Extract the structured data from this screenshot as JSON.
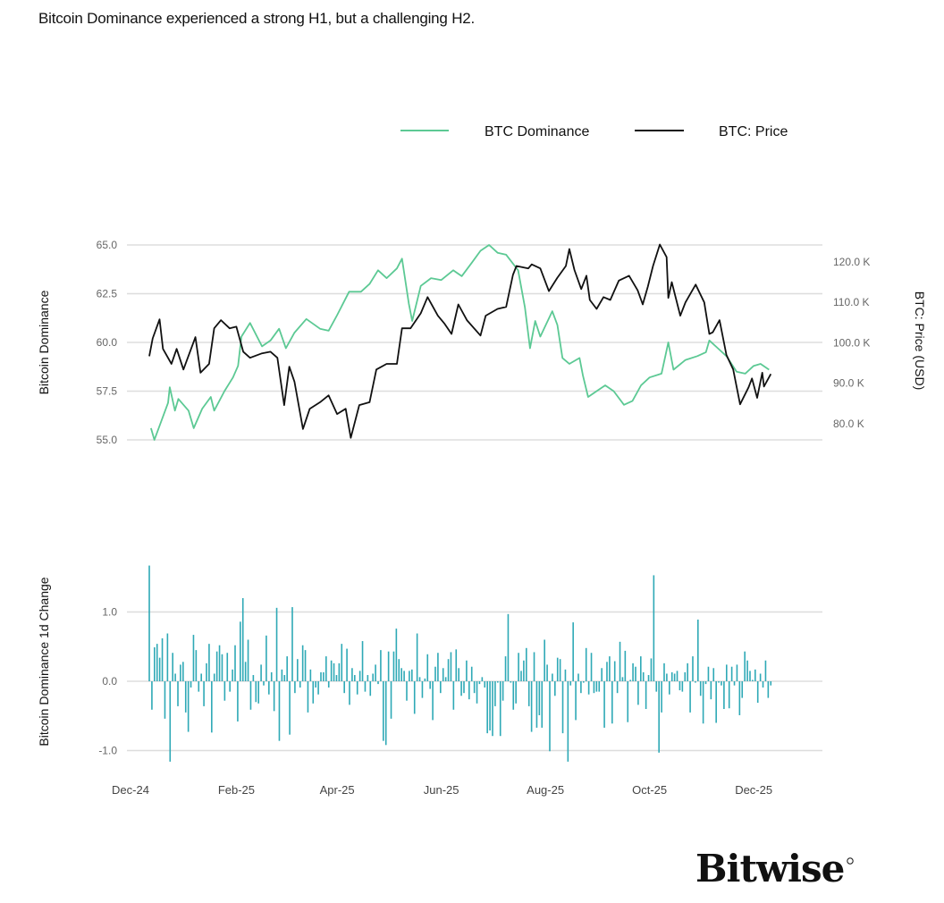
{
  "title": "Bitcoin Dominance experienced a strong H1, but a challenging H2.",
  "logo_text": "Bitwise",
  "colors": {
    "dominance": "#5cc994",
    "price": "#111111",
    "bars": "#2ea9b6",
    "grid": "#dddddd"
  },
  "chart_data": [
    {
      "type": "line",
      "x_unit": "days since 2024-12-01",
      "xlim": [
        0,
        400
      ],
      "x_ticks": [
        {
          "label": "Dec-24",
          "day": 0
        },
        {
          "label": "Feb-25",
          "day": 62
        },
        {
          "label": "Apr-25",
          "day": 121
        },
        {
          "label": "Jun-25",
          "day": 182
        },
        {
          "label": "Aug-25",
          "day": 243
        },
        {
          "label": "Oct-25",
          "day": 304
        },
        {
          "label": "Dec-25",
          "day": 365
        }
      ],
      "legend": {
        "placement": "top-right",
        "entries": [
          "BTC Dominance",
          "BTC: Price"
        ]
      },
      "ylabel_left": "Bitcoin Dominance",
      "ylim_left": [
        55,
        65
      ],
      "yticks_left": [
        {
          "label": "65.0",
          "value": 65
        },
        {
          "label": "62.5",
          "value": 62.5
        },
        {
          "label": "60.0",
          "value": 60
        },
        {
          "label": "57.5",
          "value": 57.5
        },
        {
          "label": "55.0",
          "value": 55
        }
      ],
      "ylabel_right": "BTC: Price (USD)",
      "ylim_right": [
        76,
        124.2
      ],
      "yticks_right": [
        {
          "label": "120.0 K",
          "value": 120
        },
        {
          "label": "110.0 K",
          "value": 110
        },
        {
          "label": "100.0 K",
          "value": 100
        },
        {
          "label": "90.0 K",
          "value": 90
        },
        {
          "label": "80.0 K",
          "value": 80
        }
      ],
      "grid": true,
      "series": [
        {
          "name": "BTC Dominance",
          "axis": "left",
          "points": [
            [
              12,
              55.6
            ],
            [
              14,
              55.0
            ],
            [
              22,
              56.9
            ],
            [
              23,
              57.7
            ],
            [
              26,
              56.5
            ],
            [
              28,
              57.1
            ],
            [
              34,
              56.5
            ],
            [
              37,
              55.6
            ],
            [
              42,
              56.6
            ],
            [
              47,
              57.2
            ],
            [
              49,
              56.5
            ],
            [
              55,
              57.5
            ],
            [
              60,
              58.2
            ],
            [
              63,
              58.8
            ],
            [
              65,
              60.3
            ],
            [
              70,
              61.0
            ],
            [
              77,
              59.8
            ],
            [
              82,
              60.1
            ],
            [
              87,
              60.7
            ],
            [
              91,
              59.7
            ],
            [
              96,
              60.5
            ],
            [
              103,
              61.2
            ],
            [
              111,
              60.7
            ],
            [
              116,
              60.6
            ],
            [
              121,
              61.4
            ],
            [
              128,
              62.6
            ],
            [
              135,
              62.6
            ],
            [
              140,
              63.0
            ],
            [
              145,
              63.7
            ],
            [
              150,
              63.3
            ],
            [
              156,
              63.8
            ],
            [
              159,
              64.3
            ],
            [
              163,
              62.0
            ],
            [
              165,
              61.1
            ],
            [
              170,
              62.9
            ],
            [
              176,
              63.3
            ],
            [
              182,
              63.2
            ],
            [
              189,
              63.7
            ],
            [
              194,
              63.4
            ],
            [
              200,
              64.1
            ],
            [
              205,
              64.7
            ],
            [
              210,
              65.0
            ],
            [
              215,
              64.6
            ],
            [
              220,
              64.5
            ],
            [
              227,
              63.7
            ],
            [
              231,
              61.8
            ],
            [
              234,
              59.7
            ],
            [
              237,
              61.1
            ],
            [
              240,
              60.3
            ],
            [
              247,
              61.6
            ],
            [
              250,
              60.9
            ],
            [
              253,
              59.2
            ],
            [
              257,
              58.9
            ],
            [
              263,
              59.2
            ],
            [
              265,
              58.3
            ],
            [
              268,
              57.2
            ],
            [
              273,
              57.5
            ],
            [
              278,
              57.8
            ],
            [
              283,
              57.5
            ],
            [
              289,
              56.8
            ],
            [
              294,
              57.0
            ],
            [
              299,
              57.8
            ],
            [
              304,
              58.2
            ],
            [
              311,
              58.4
            ],
            [
              315,
              60.0
            ],
            [
              318,
              58.6
            ],
            [
              325,
              59.1
            ],
            [
              332,
              59.3
            ],
            [
              337,
              59.5
            ],
            [
              339,
              60.1
            ],
            [
              344,
              59.7
            ],
            [
              349,
              59.3
            ],
            [
              355,
              58.5
            ],
            [
              360,
              58.4
            ],
            [
              365,
              58.8
            ],
            [
              369,
              58.9
            ],
            [
              374,
              58.6
            ]
          ]
        },
        {
          "name": "BTC: Price",
          "axis": "right",
          "unit": "K USD",
          "points": [
            [
              11,
              96.7
            ],
            [
              13,
              101.1
            ],
            [
              17,
              105.8
            ],
            [
              19,
              98.5
            ],
            [
              24,
              94.8
            ],
            [
              27,
              98.5
            ],
            [
              31,
              93.4
            ],
            [
              38,
              101.4
            ],
            [
              41,
              92.6
            ],
            [
              46,
              94.8
            ],
            [
              49,
              103.6
            ],
            [
              53,
              105.6
            ],
            [
              58,
              103.6
            ],
            [
              62,
              104.0
            ],
            [
              66,
              97.8
            ],
            [
              70,
              96.3
            ],
            [
              77,
              97.4
            ],
            [
              82,
              97.8
            ],
            [
              86,
              96.3
            ],
            [
              90,
              84.6
            ],
            [
              93,
              94.1
            ],
            [
              96,
              90.4
            ],
            [
              101,
              78.7
            ],
            [
              105,
              83.7
            ],
            [
              111,
              85.3
            ],
            [
              116,
              87.0
            ],
            [
              121,
              82.4
            ],
            [
              126,
              83.7
            ],
            [
              129,
              76.5
            ],
            [
              134,
              84.6
            ],
            [
              140,
              85.3
            ],
            [
              144,
              93.4
            ],
            [
              150,
              94.8
            ],
            [
              156,
              94.8
            ],
            [
              159,
              103.6
            ],
            [
              164,
              103.6
            ],
            [
              170,
              107.3
            ],
            [
              174,
              111.3
            ],
            [
              180,
              106.7
            ],
            [
              184,
              104.7
            ],
            [
              188,
              102.2
            ],
            [
              192,
              109.5
            ],
            [
              197,
              105.6
            ],
            [
              205,
              101.8
            ],
            [
              208,
              106.7
            ],
            [
              215,
              108.4
            ],
            [
              220,
              108.9
            ],
            [
              224,
              116.8
            ],
            [
              226,
              119.0
            ],
            [
              233,
              118.4
            ],
            [
              235,
              119.4
            ],
            [
              240,
              118.4
            ],
            [
              245,
              112.8
            ],
            [
              250,
              116.1
            ],
            [
              255,
              119.0
            ],
            [
              257,
              123.2
            ],
            [
              260,
              118.0
            ],
            [
              264,
              113.3
            ],
            [
              267,
              116.6
            ],
            [
              269,
              110.6
            ],
            [
              273,
              108.4
            ],
            [
              277,
              111.3
            ],
            [
              281,
              110.6
            ],
            [
              286,
              115.4
            ],
            [
              292,
              116.6
            ],
            [
              297,
              113.0
            ],
            [
              300,
              109.5
            ],
            [
              303,
              113.9
            ],
            [
              306,
              119.0
            ],
            [
              310,
              124.3
            ],
            [
              314,
              121.2
            ],
            [
              315,
              111.1
            ],
            [
              317,
              115.0
            ],
            [
              322,
              106.7
            ],
            [
              325,
              110.0
            ],
            [
              331,
              114.4
            ],
            [
              336,
              110.0
            ],
            [
              339,
              102.2
            ],
            [
              341,
              102.6
            ],
            [
              345,
              105.6
            ],
            [
              349,
              97.0
            ],
            [
              353,
              93.4
            ],
            [
              357,
              84.8
            ],
            [
              362,
              89.0
            ],
            [
              364,
              91.2
            ],
            [
              367,
              86.4
            ],
            [
              370,
              92.6
            ],
            [
              371,
              89.2
            ],
            [
              375,
              92.3
            ]
          ]
        }
      ]
    },
    {
      "type": "bar",
      "ylabel": "Bitcoin Dominance 1d Change",
      "ylim": [
        -1.2,
        1.7
      ],
      "yticks": [
        {
          "label": "1.0",
          "value": 1
        },
        {
          "label": "0.0",
          "value": 0
        },
        {
          "label": "-1.0",
          "value": -1
        }
      ],
      "x_start_day": 11,
      "x_end_day": 375,
      "grid": true,
      "values": [
        1.67,
        -0.41,
        0.49,
        0.54,
        0.34,
        0.62,
        -0.54,
        0.69,
        -1.16,
        0.41,
        0.11,
        -0.36,
        0.24,
        0.28,
        -0.45,
        -0.73,
        -0.09,
        0.67,
        0.45,
        -0.15,
        0.11,
        -0.36,
        0.26,
        0.54,
        -0.74,
        0.11,
        0.43,
        0.52,
        0.39,
        -0.28,
        0.41,
        -0.15,
        0.17,
        0.52,
        -0.58,
        0.86,
        1.2,
        0.28,
        0.6,
        -0.41,
        0.09,
        -0.3,
        -0.32,
        0.24,
        -0.06,
        0.66,
        -0.19,
        0.13,
        -0.43,
        1.06,
        -0.86,
        0.17,
        0.09,
        0.36,
        -0.77,
        1.07,
        -0.17,
        0.32,
        -0.09,
        0.52,
        0.45,
        -0.45,
        0.17,
        -0.32,
        -0.09,
        -0.19,
        0.13,
        0.13,
        0.36,
        -0.09,
        0.3,
        0.26,
        0.09,
        0.26,
        0.54,
        -0.17,
        0.47,
        -0.34,
        0.19,
        0.09,
        -0.19,
        0.15,
        0.58,
        -0.15,
        0.09,
        -0.21,
        0.11,
        0.24,
        -0.04,
        0.45,
        -0.86,
        -0.92,
        0.43,
        -0.54,
        0.43,
        0.76,
        0.32,
        0.19,
        0.15,
        -0.28,
        0.15,
        0.17,
        -0.47,
        0.69,
        0.06,
        -0.24,
        0.04,
        0.39,
        -0.11,
        -0.56,
        0.21,
        0.41,
        -0.17,
        0.19,
        0.06,
        0.32,
        0.42,
        -0.41,
        0.46,
        0.19,
        -0.21,
        -0.17,
        0.3,
        -0.26,
        0.21,
        -0.17,
        -0.32,
        -0.04,
        0.06,
        -0.09,
        -0.75,
        -0.71,
        -0.79,
        -0.36,
        -0.02,
        -0.79,
        -0.28,
        0.36,
        0.97,
        -0.02,
        -0.41,
        -0.32,
        0.41,
        0.15,
        0.3,
        0.48,
        -0.36,
        -0.73,
        0.42,
        -0.67,
        -0.49,
        -0.67,
        0.6,
        0.24,
        -1.01,
        0.11,
        -0.21,
        0.34,
        0.32,
        -0.75,
        0.17,
        -1.16,
        -0.06,
        0.85,
        -0.56,
        0.11,
        -0.17,
        -0.02,
        0.48,
        -0.19,
        0.41,
        -0.17,
        -0.15,
        -0.15,
        0.19,
        -0.67,
        0.28,
        0.36,
        -0.61,
        0.29,
        -0.17,
        0.57,
        0.06,
        0.44,
        -0.59,
        0.02,
        0.26,
        0.21,
        -0.34,
        0.36,
        0.13,
        -0.4,
        0.09,
        0.33,
        1.53,
        -0.15,
        -1.03,
        -0.45,
        0.26,
        0.11,
        -0.19,
        0.13,
        0.11,
        0.15,
        -0.13,
        -0.15,
        0.13,
        0.26,
        -0.45,
        0.36,
        -0.02,
        0.89,
        -0.21,
        -0.61,
        -0.04,
        0.21,
        -0.26,
        0.19,
        -0.6,
        -0.02,
        -0.06,
        -0.4,
        0.24,
        -0.39,
        0.21,
        -0.06,
        0.24,
        -0.49,
        -0.24,
        0.43,
        0.3,
        0.15,
        0.02,
        0.17,
        -0.31,
        0.11,
        -0.09,
        0.3,
        -0.24,
        -0.06
      ]
    }
  ]
}
